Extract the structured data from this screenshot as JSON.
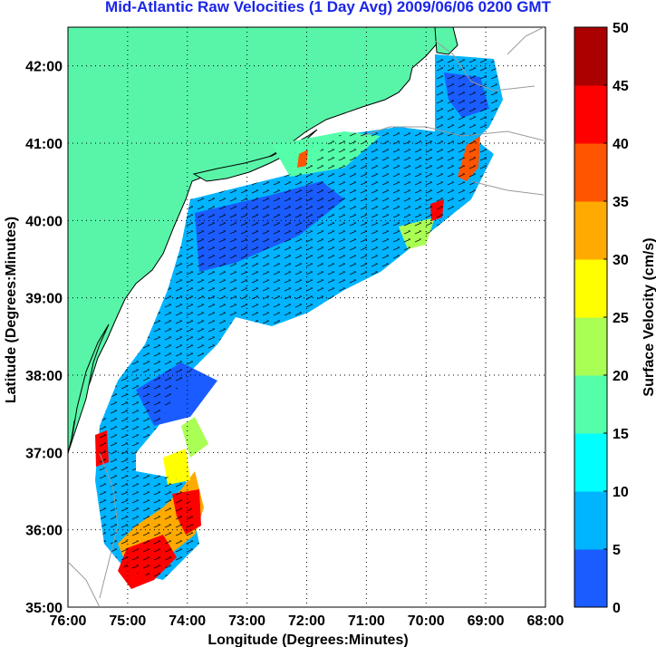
{
  "map": {
    "title": "Mid-Atlantic Raw Velocities (1 Day Avg) 2009/06/06 0200 GMT",
    "xlabel": "Longitude (Degrees:Minutes)",
    "ylabel": "Latitude (Degrees:Minutes)",
    "x_ticks": [
      "76:00",
      "75:00",
      "74:00",
      "73:00",
      "72:00",
      "71:00",
      "70:00",
      "69:00",
      "68:00"
    ],
    "y_ticks": [
      "35:00",
      "36:00",
      "37:00",
      "38:00",
      "39:00",
      "40:00",
      "41:00",
      "42:00"
    ],
    "x_range_deg_west": [
      76,
      68
    ],
    "y_range_deg_north": [
      35,
      42.5
    ],
    "land_color": "#58f5a8",
    "grid": true
  },
  "colorbar": {
    "label": "Surface Velocity (cm/s)",
    "ticks": [
      "0",
      "5",
      "10",
      "15",
      "20",
      "25",
      "30",
      "35",
      "40",
      "45",
      "50"
    ],
    "range": [
      0,
      50
    ],
    "colors": [
      "#1a5cff",
      "#00b4ff",
      "#00ffff",
      "#55ffaa",
      "#aaff55",
      "#ffff00",
      "#ffaa00",
      "#ff5500",
      "#ff0000",
      "#aa0000"
    ]
  }
}
